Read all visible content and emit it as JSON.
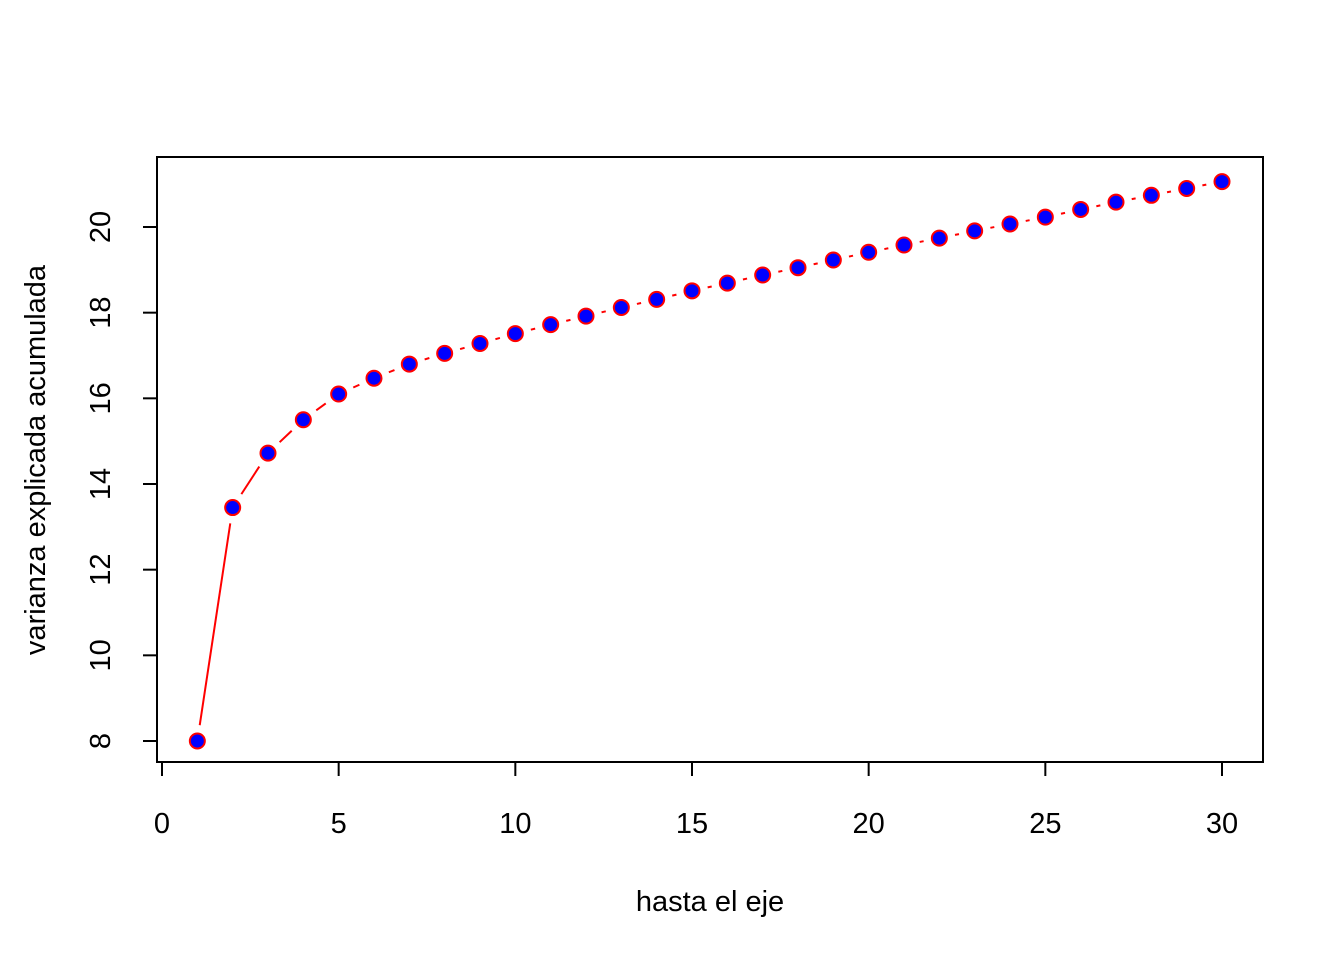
{
  "chart_data": {
    "type": "line",
    "title": "",
    "xlabel": "hasta el eje",
    "ylabel": "varianza explicada acumulada",
    "xlim": [
      0,
      30
    ],
    "ylim": [
      7.5,
      21.6
    ],
    "xticks": [
      0,
      5,
      10,
      15,
      20,
      25,
      30
    ],
    "yticks": [
      8,
      10,
      12,
      14,
      16,
      18,
      20
    ],
    "grid": false,
    "legend": "none",
    "line_type": "both (points and line segments)",
    "point_style": "filled circle",
    "colors": {
      "line": "#ff0000",
      "point_fill": "#0000ff",
      "point_border": "#ff0000",
      "axes": "#000000"
    },
    "x": [
      1,
      2,
      3,
      4,
      5,
      6,
      7,
      8,
      9,
      10,
      11,
      12,
      13,
      14,
      15,
      16,
      17,
      18,
      19,
      20,
      21,
      22,
      23,
      24,
      25,
      26,
      27,
      28,
      29,
      30
    ],
    "y": [
      8.0,
      13.45,
      14.72,
      15.5,
      16.1,
      16.47,
      16.8,
      17.05,
      17.28,
      17.51,
      17.72,
      17.92,
      18.12,
      18.31,
      18.51,
      18.69,
      18.88,
      19.05,
      19.23,
      19.41,
      19.58,
      19.74,
      19.91,
      20.07,
      20.23,
      20.41,
      20.58,
      20.74,
      20.9,
      21.06
    ]
  }
}
